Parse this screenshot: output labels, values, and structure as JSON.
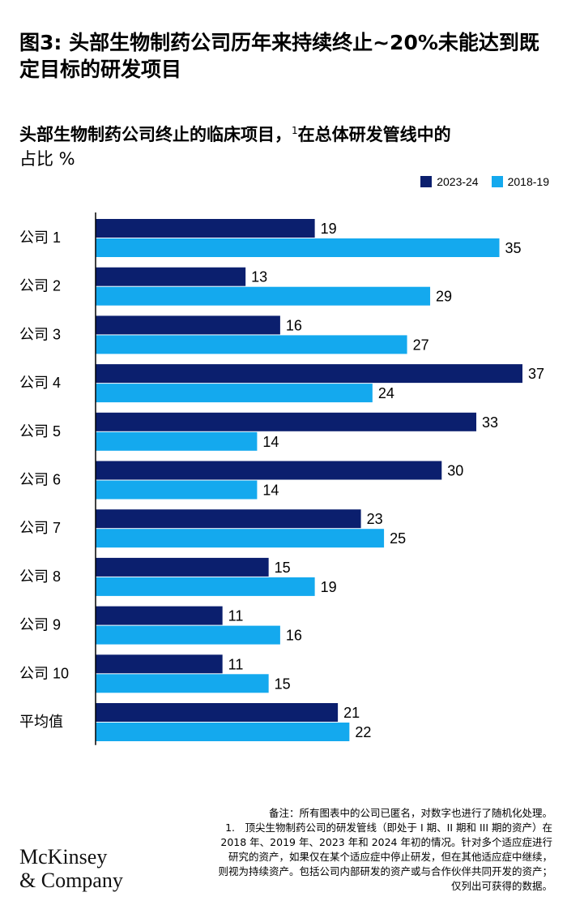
{
  "header": {
    "title": "图3: 头部生物制药公司历年来持续终止~20%未能达到既定目标的研发项目",
    "subtitle_main": "头部生物制药公司终止的临床项目，",
    "subtitle_footnote_marker": "1",
    "subtitle_rest": "在总体研发管线中的",
    "subtitle_unit": "占比 %"
  },
  "colors": {
    "series_2023": "#0b1f6e",
    "series_2018": "#14a9ee",
    "axis": "#000000"
  },
  "chart_data": {
    "type": "bar",
    "orientation": "horizontal",
    "categories": [
      "公司 1",
      "公司 2",
      "公司 3",
      "公司 4",
      "公司 5",
      "公司 6",
      "公司 7",
      "公司 8",
      "公司 9",
      "公司 10",
      "平均值"
    ],
    "series": [
      {
        "name": "2023-24",
        "values": [
          19,
          13,
          16,
          37,
          33,
          30,
          23,
          15,
          11,
          11,
          21
        ]
      },
      {
        "name": "2018-19",
        "values": [
          35,
          29,
          27,
          24,
          14,
          14,
          25,
          19,
          16,
          15,
          22
        ]
      }
    ],
    "xlim": [
      0,
      37
    ],
    "legend_position": "top-right",
    "grid": false
  },
  "notes": {
    "note": "备注：所有图表中的公司已匿名，对数字也进行了随机化处理。",
    "footnote_lines": [
      "1.　顶尖生物制药公司的研发管线（即处于 I 期、II 期和 III 期的资产）在",
      "2018 年、2019 年、2023 年和 2024 年初的情况。针对多个适应症进行",
      "研究的资产，如果仅在某个适应症中停止研发，但在其他适应症中继续，",
      "则视为持续资产。包括公司内部研发的资产或与合作伙伴共同开发的资产；",
      "仅列出可获得的数据。"
    ]
  },
  "brand": {
    "line1": "McKinsey",
    "line2": "& Company"
  }
}
